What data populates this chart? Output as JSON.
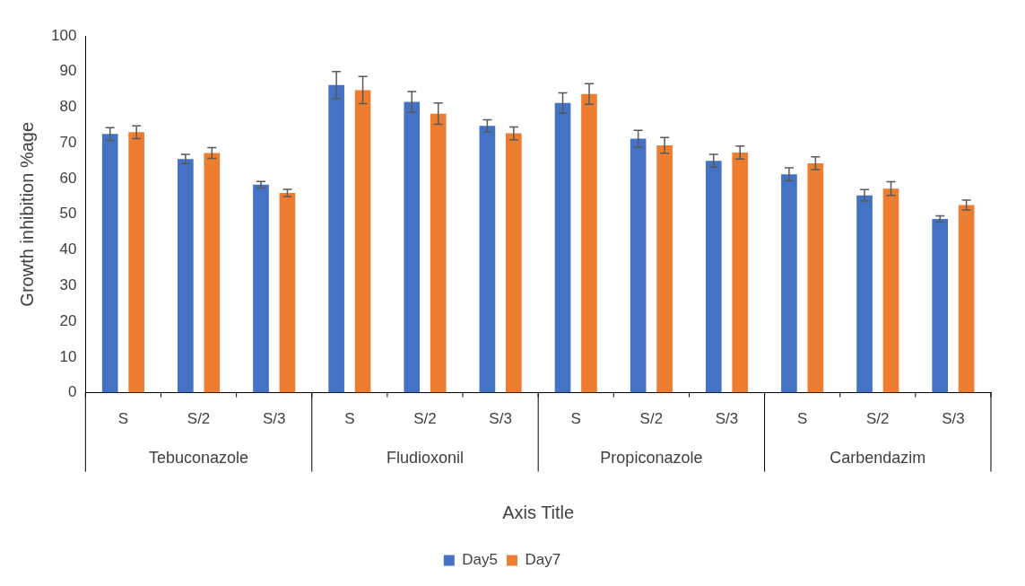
{
  "chart_data": {
    "type": "bar",
    "xlabel": "Axis Title",
    "ylabel": "Growth inhibition %age",
    "categories": [
      "S",
      "S/2",
      "S/3",
      "S",
      "S/2",
      "S/3",
      "S",
      "S/2",
      "S/3",
      "S",
      "S/2",
      "S/3"
    ],
    "annotations": [
      "Tebuconazole",
      "Fludioxonil",
      "Propiconazole",
      "Carbendazim"
    ],
    "series": [
      {
        "name": "Day5",
        "color": "#4472c4",
        "values": [
          72.5,
          65.5,
          58.3,
          86.2,
          81.5,
          74.8,
          81.2,
          71.2,
          65.0,
          61.2,
          55.3,
          48.7
        ],
        "errors": [
          1.8,
          1.3,
          0.9,
          3.8,
          2.9,
          1.7,
          2.8,
          2.3,
          1.8,
          1.8,
          1.6,
          0.9
        ]
      },
      {
        "name": "Day7",
        "color": "#ed7d31",
        "values": [
          73.0,
          67.2,
          56.0,
          84.8,
          78.2,
          72.7,
          83.7,
          69.3,
          67.3,
          64.3,
          57.2,
          52.6
        ],
        "errors": [
          1.8,
          1.5,
          1.0,
          3.8,
          3.0,
          1.8,
          2.9,
          2.2,
          1.8,
          1.8,
          1.9,
          1.4
        ]
      }
    ],
    "ylim": [
      0,
      100
    ],
    "yticks": [
      0,
      10,
      20,
      30,
      40,
      50,
      60,
      70,
      80,
      90,
      100
    ],
    "grid": false,
    "legend": "bottom"
  }
}
